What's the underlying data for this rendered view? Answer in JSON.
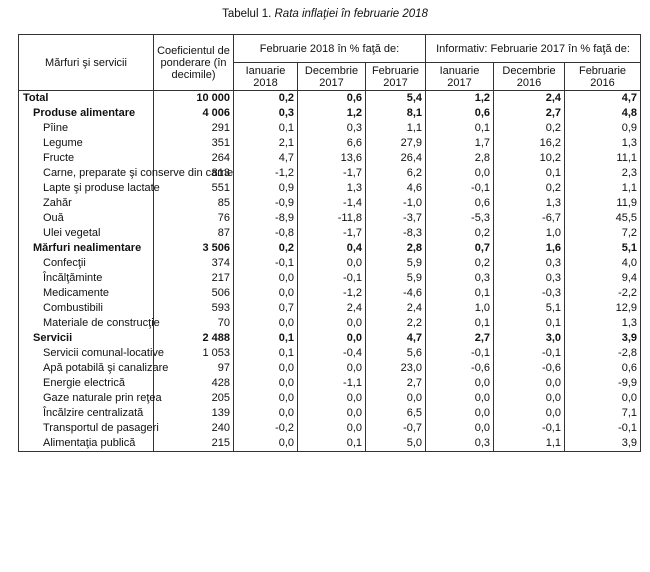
{
  "caption": {
    "prefix": "Tabelul 1.",
    "title": "Rata inflaţiei în februarie 2018"
  },
  "headers": {
    "col1": "Mărfuri şi servicii",
    "col2": "Coeficientul de ponderare (în decimile)",
    "group1": "Februarie 2018 în % faţă de:",
    "group2": "Informativ: Februarie 2017 în % faţă de:",
    "sub": [
      "Ianuarie 2018",
      "Decembrie 2017",
      "Februarie 2017",
      "Ianuarie 2017",
      "Decembrie 2016",
      "Februarie 2016"
    ]
  },
  "rows": [
    {
      "name": "Total",
      "weight": "10 000",
      "v": [
        "0,2",
        "0,6",
        "5,4",
        "1,2",
        "2,4",
        "4,7"
      ]
    },
    {
      "name": "Produse alimentare",
      "weight": "4 006",
      "v": [
        "0,3",
        "1,2",
        "8,1",
        "0,6",
        "2,7",
        "4,8"
      ]
    },
    {
      "name": "Pîine",
      "weight": "291",
      "v": [
        "0,1",
        "0,3",
        "1,1",
        "0,1",
        "0,2",
        "0,9"
      ]
    },
    {
      "name": "Legume",
      "weight": "351",
      "v": [
        "2,1",
        "6,6",
        "27,9",
        "1,7",
        "16,2",
        "1,3"
      ]
    },
    {
      "name": "Fructe",
      "weight": "264",
      "v": [
        "4,7",
        "13,6",
        "26,4",
        "2,8",
        "10,2",
        "11,1"
      ]
    },
    {
      "name": "Carne, preparate şi conserve din carne",
      "weight": "813",
      "v": [
        "-1,2",
        "-1,7",
        "6,2",
        "0,0",
        "0,1",
        "2,3"
      ]
    },
    {
      "name": "Lapte şi produse lactate",
      "weight": "551",
      "v": [
        "0,9",
        "1,3",
        "4,6",
        "-0,1",
        "0,2",
        "1,1"
      ]
    },
    {
      "name": "Zahăr",
      "weight": "85",
      "v": [
        "-0,9",
        "-1,4",
        "-1,0",
        "0,6",
        "1,3",
        "11,9"
      ]
    },
    {
      "name": "Ouă",
      "weight": "76",
      "v": [
        "-8,9",
        "-11,8",
        "-3,7",
        "-5,3",
        "-6,7",
        "45,5"
      ]
    },
    {
      "name": "Ulei vegetal",
      "weight": "87",
      "v": [
        "-0,8",
        "-1,7",
        "-8,3",
        "0,2",
        "1,0",
        "7,2"
      ]
    },
    {
      "name": "Mărfuri nealimentare",
      "weight": "3 506",
      "v": [
        "0,2",
        "0,4",
        "2,8",
        "0,7",
        "1,6",
        "5,1"
      ]
    },
    {
      "name": "Confecţii",
      "weight": "374",
      "v": [
        "-0,1",
        "0,0",
        "5,9",
        "0,2",
        "0,3",
        "4,0"
      ]
    },
    {
      "name": "Încălţăminte",
      "weight": "217",
      "v": [
        "0,0",
        "-0,1",
        "5,9",
        "0,3",
        "0,3",
        "9,4"
      ]
    },
    {
      "name": "Medicamente",
      "weight": "506",
      "v": [
        "0,0",
        "-1,2",
        "-4,6",
        "0,1",
        "-0,3",
        "-2,2"
      ]
    },
    {
      "name": "Combustibili",
      "weight": "593",
      "v": [
        "0,7",
        "2,4",
        "2,4",
        "1,0",
        "5,1",
        "12,9"
      ]
    },
    {
      "name": "Materiale de construcţie",
      "weight": "70",
      "v": [
        "0,0",
        "0,0",
        "2,2",
        "0,1",
        "0,1",
        "1,3"
      ]
    },
    {
      "name": "Servicii",
      "weight": "2 488",
      "v": [
        "0,1",
        "0,0",
        "4,7",
        "2,7",
        "3,0",
        "3,9"
      ]
    },
    {
      "name": "Servicii comunal-locative",
      "weight": "1 053",
      "v": [
        "0,1",
        "-0,4",
        "5,6",
        "-0,1",
        "-0,1",
        "-2,8"
      ]
    },
    {
      "name": "Apă potabilă şi canalizare",
      "weight": "97",
      "v": [
        "0,0",
        "0,0",
        "23,0",
        "-0,6",
        "-0,6",
        "0,6"
      ]
    },
    {
      "name": "Energie electrică",
      "weight": "428",
      "v": [
        "0,0",
        "-1,1",
        "2,7",
        "0,0",
        "0,0",
        "-9,9"
      ]
    },
    {
      "name": "Gaze naturale prin reţea",
      "weight": "205",
      "v": [
        "0,0",
        "0,0",
        "0,0",
        "0,0",
        "0,0",
        "0,0"
      ]
    },
    {
      "name": "Încălzire centralizată",
      "weight": "139",
      "v": [
        "0,0",
        "0,0",
        "6,5",
        "0,0",
        "0,0",
        "7,1"
      ]
    },
    {
      "name": "Transportul de pasageri",
      "weight": "240",
      "v": [
        "-0,2",
        "0,0",
        "-0,7",
        "0,0",
        "-0,1",
        "-0,1"
      ]
    },
    {
      "name": "Alimentaţia publică",
      "weight": "215",
      "v": [
        "0,0",
        "0,1",
        "5,0",
        "0,3",
        "1,1",
        "3,9"
      ]
    }
  ]
}
